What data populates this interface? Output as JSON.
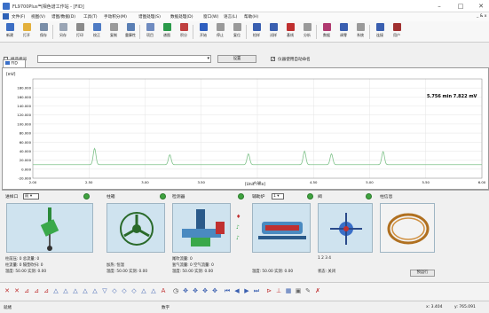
{
  "window": {
    "title": "FL9700Plus气相色谱工作站 - [FID]",
    "minimize": "–",
    "maximize": "□",
    "close": "✕"
  },
  "menu": {
    "items": [
      "文件(F)",
      "视图(V)",
      "谱图/数据(D)",
      "工具(T)",
      "手动积分(M)",
      "谱图处理(S)",
      "数据处理(D)",
      "窗口(W)",
      "语言(L)",
      "帮助(H)"
    ],
    "extra": "_ & x"
  },
  "toolbar": {
    "buttons": [
      {
        "label": "新建",
        "icon": "new-file-icon",
        "color": "#3c6ec4"
      },
      {
        "label": "打开",
        "icon": "open-folder-icon",
        "color": "#e3b03c"
      },
      {
        "label": "保存",
        "icon": "save-icon",
        "color": "#7a8ea8"
      },
      {
        "label": "另存",
        "icon": "save-as-icon",
        "color": "#9aa5b5"
      },
      {
        "label": "打印",
        "icon": "print-icon",
        "color": "#8a8a8a"
      },
      {
        "label": "校正",
        "icon": "calibrate-icon",
        "color": "#4e7bc4"
      },
      {
        "label": "复制",
        "icon": "copy-icon",
        "color": "#9a9a9a"
      },
      {
        "label": "重算性",
        "icon": "recalc-icon",
        "color": "#5a7fb4"
      },
      {
        "label": "项目",
        "icon": "project-icon",
        "color": "#6f8bc0"
      },
      {
        "label": "谱图",
        "icon": "chromatogram-icon",
        "color": "#2a9a4a"
      },
      {
        "label": "积分",
        "icon": "integrate-icon",
        "color": "#c04040"
      },
      {
        "label": "开始",
        "icon": "play-icon",
        "color": "#2f5fbf"
      },
      {
        "label": "停止",
        "icon": "stop-icon",
        "color": "#9a9a9a"
      },
      {
        "label": "复位",
        "icon": "reset-icon",
        "color": "#9a9a9a"
      },
      {
        "label": "检样",
        "icon": "sample-icon",
        "color": "#3a5fb0"
      },
      {
        "label": "试样",
        "icon": "test-icon",
        "color": "#3a5fb0"
      },
      {
        "label": "基线",
        "icon": "baseline-icon",
        "color": "#c03030"
      },
      {
        "label": "分析",
        "icon": "analyze-icon",
        "color": "#9a9a9a"
      },
      {
        "label": "数据",
        "icon": "data-icon",
        "color": "#b03a70"
      },
      {
        "label": "调零",
        "icon": "zero-icon",
        "color": "#3a5fb0"
      },
      {
        "label": "系统",
        "icon": "system-icon",
        "color": "#9a9a9a"
      },
      {
        "label": "连接",
        "icon": "connect-icon",
        "color": "#3a5fb0"
      },
      {
        "label": "用户",
        "icon": "user-icon",
        "color": "#a03030"
      }
    ]
  },
  "options": {
    "sample_batch_label": "样品批号",
    "sample_batch_value": "",
    "set_button": "设置",
    "auto_name_label": "仪器使用自动命名",
    "auto_name_checked": true
  },
  "doc_tab": {
    "label": "FID"
  },
  "chart_data": {
    "type": "line",
    "ylabel": "[mV]",
    "xlabel": "[Unit: min]",
    "cursor_readout": "5.756 min  7.822 mV",
    "xlim": [
      2.0,
      6.0
    ],
    "ylim": [
      -20,
      200
    ],
    "x_ticks": [
      "2.00",
      "2.50",
      "3.00",
      "3.50",
      "4.00",
      "4.50",
      "5.00",
      "5.50",
      "6.00"
    ],
    "y_ticks": [
      "180.000",
      "160.000",
      "140.000",
      "120.000",
      "100.000",
      "80.000",
      "60.000",
      "40.000",
      "20.000",
      "0.000",
      "-20.000"
    ],
    "baseline": 10,
    "peaks": [
      {
        "x": 2.55,
        "height": 36
      },
      {
        "x": 3.22,
        "height": 22
      },
      {
        "x": 3.92,
        "height": 24
      },
      {
        "x": 4.42,
        "height": 30
      },
      {
        "x": 4.66,
        "height": 24
      },
      {
        "x": 5.12,
        "height": 29
      }
    ],
    "series_color": "#7fc28a",
    "grid": true
  },
  "panels": {
    "injector": {
      "title": "进样口",
      "select_value": "前",
      "lines": [
        "柱前压: 0   总流量: 0",
        "柱流量: 0   隔垫吹扫: 0",
        "温度: 50.00  实测: 0.00"
      ],
      "status_dot": "#3fa340"
    },
    "column": {
      "title": "柱箱",
      "lines": [
        "加热: 恒温",
        "温度: 50.00  实测: 0.00"
      ],
      "status_dot": "#3fa340"
    },
    "detector": {
      "title": "检测器",
      "lines": [
        "尾吹流量: 0",
        "氢气流量: 0   空气流量: 0",
        "温度: 50.00  实测: 0.00"
      ],
      "status_dot": "#3fa340"
    },
    "aux": {
      "title": "辅助炉",
      "select_value": "1",
      "lines": [
        "温度: 50.00  实测: 0.00"
      ],
      "status_dot": "#3fa340"
    },
    "valve": {
      "title": "阀",
      "numbers": "1  2  3  4",
      "status_label": "状态: 关闭",
      "status_dot": "#3fa340"
    },
    "info": {
      "title": "柱信息",
      "button": "预运行"
    }
  },
  "bottom_toolbar": {
    "icons": [
      "peak-start-icon",
      "peak-end-icon",
      "valley-icon",
      "tangent-icon",
      "split-icon",
      "baseline-icon",
      "add-peak-icon",
      "delete-peak-icon",
      "merge-icon",
      "drop-line-icon",
      "horizontal-icon",
      "forward-icon",
      "backward-icon",
      "shoulder-icon",
      "negative-icon",
      "area-icon",
      "label-icon",
      "clock-icon",
      "zoom-in-icon",
      "zoom-out-icon",
      "move-icon",
      "pan-icon",
      "first-icon",
      "prev-icon",
      "next-icon",
      "last-icon",
      "mark-icon",
      "pin-icon",
      "layout-icon",
      "camera-icon",
      "edit-icon",
      "cancel-icon"
    ]
  },
  "status": {
    "left": "就绪",
    "middle": "数字",
    "x": "x: 3.404",
    "y": "y: 765.091"
  }
}
